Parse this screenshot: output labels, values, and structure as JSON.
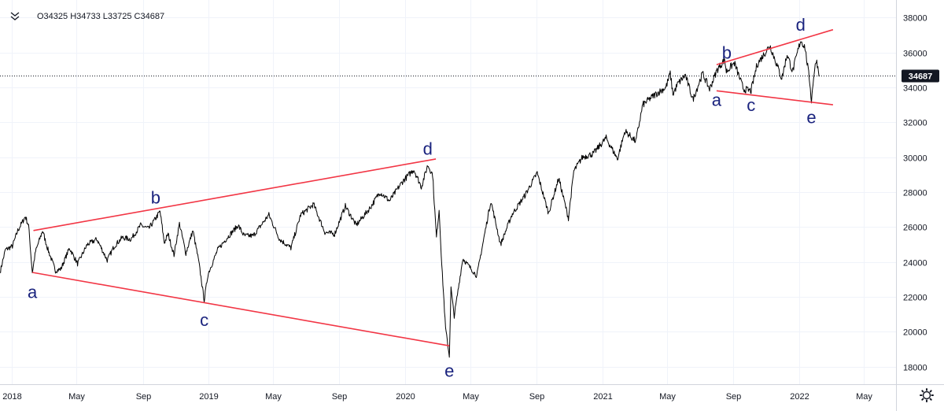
{
  "legend": {
    "collapse_icon": "double-chevron-icon",
    "ohlc": "O34325 H34733 L33725 C34687"
  },
  "settings_icon": "gear-icon",
  "last_price_label": "34687",
  "colors": {
    "price_line": "#000000",
    "trend_line": "#f23645",
    "wave_label": "#1a237e",
    "grid": "#f0f3fa",
    "axis": "#d1d4dc",
    "price_tag": "#131722"
  },
  "chart_data": {
    "type": "line",
    "title": "",
    "xlabel": "",
    "ylabel": "",
    "ylim": [
      17000,
      39000
    ],
    "xlim": [
      "2017-12-10",
      "2022-06-30"
    ],
    "grid": true,
    "y_ticks": [
      18000,
      20000,
      22000,
      24000,
      26000,
      28000,
      30000,
      32000,
      34000,
      36000,
      38000
    ],
    "x_ticks": [
      {
        "date": "2018-01-01",
        "label": "2018"
      },
      {
        "date": "2018-05-01",
        "label": "May"
      },
      {
        "date": "2018-09-01",
        "label": "Sep"
      },
      {
        "date": "2019-01-01",
        "label": "2019"
      },
      {
        "date": "2019-05-01",
        "label": "May"
      },
      {
        "date": "2019-09-01",
        "label": "Sep"
      },
      {
        "date": "2020-01-01",
        "label": "2020"
      },
      {
        "date": "2020-05-01",
        "label": "May"
      },
      {
        "date": "2020-09-01",
        "label": "Sep"
      },
      {
        "date": "2021-01-01",
        "label": "2021"
      },
      {
        "date": "2021-05-01",
        "label": "May"
      },
      {
        "date": "2021-09-01",
        "label": "Sep"
      },
      {
        "date": "2022-01-01",
        "label": "2022"
      },
      {
        "date": "2022-05-01",
        "label": "May"
      }
    ],
    "last_price": 34687,
    "series": [
      {
        "values": [
          [
            "2017-12-10",
            23400
          ],
          [
            "2017-12-20",
            24700
          ],
          [
            "2018-01-02",
            24900
          ],
          [
            "2018-01-12",
            25800
          ],
          [
            "2018-01-26",
            26600
          ],
          [
            "2018-02-01",
            26100
          ],
          [
            "2018-02-08",
            23400
          ],
          [
            "2018-02-14",
            24600
          ],
          [
            "2018-02-27",
            25800
          ],
          [
            "2018-03-08",
            24800
          ],
          [
            "2018-03-23",
            23500
          ],
          [
            "2018-04-02",
            23600
          ],
          [
            "2018-04-18",
            24800
          ],
          [
            "2018-05-03",
            23900
          ],
          [
            "2018-05-21",
            25000
          ],
          [
            "2018-06-08",
            25300
          ],
          [
            "2018-06-27",
            24100
          ],
          [
            "2018-07-10",
            24900
          ],
          [
            "2018-07-25",
            25400
          ],
          [
            "2018-08-10",
            25300
          ],
          [
            "2018-08-28",
            26100
          ],
          [
            "2018-09-12",
            25900
          ],
          [
            "2018-09-25",
            26500
          ],
          [
            "2018-10-03",
            26900
          ],
          [
            "2018-10-11",
            25100
          ],
          [
            "2018-10-18",
            25600
          ],
          [
            "2018-10-29",
            24400
          ],
          [
            "2018-11-08",
            26200
          ],
          [
            "2018-11-20",
            24500
          ],
          [
            "2018-12-03",
            25800
          ],
          [
            "2018-12-14",
            24000
          ],
          [
            "2018-12-24",
            21800
          ],
          [
            "2018-12-31",
            23300
          ],
          [
            "2019-01-18",
            24700
          ],
          [
            "2019-02-05",
            25400
          ],
          [
            "2019-02-25",
            26100
          ],
          [
            "2019-03-08",
            25500
          ],
          [
            "2019-03-25",
            25500
          ],
          [
            "2019-04-23",
            26700
          ],
          [
            "2019-05-13",
            25300
          ],
          [
            "2019-06-03",
            24800
          ],
          [
            "2019-06-21",
            26700
          ],
          [
            "2019-07-15",
            27300
          ],
          [
            "2019-08-05",
            25700
          ],
          [
            "2019-08-23",
            25600
          ],
          [
            "2019-09-12",
            27200
          ],
          [
            "2019-10-02",
            26100
          ],
          [
            "2019-10-28",
            27100
          ],
          [
            "2019-11-15",
            28000
          ],
          [
            "2019-12-03",
            27500
          ],
          [
            "2019-12-27",
            28600
          ],
          [
            "2020-01-17",
            29300
          ],
          [
            "2020-01-31",
            28300
          ],
          [
            "2020-02-12",
            29550
          ],
          [
            "2020-02-21",
            29000
          ],
          [
            "2020-02-28",
            25400
          ],
          [
            "2020-03-04",
            27000
          ],
          [
            "2020-03-09",
            23800
          ],
          [
            "2020-03-16",
            20200
          ],
          [
            "2020-03-23",
            18600
          ],
          [
            "2020-03-26",
            22500
          ],
          [
            "2020-04-01",
            20900
          ],
          [
            "2020-04-17",
            24200
          ],
          [
            "2020-05-13",
            23200
          ],
          [
            "2020-06-08",
            27500
          ],
          [
            "2020-06-26",
            25000
          ],
          [
            "2020-07-17",
            26700
          ],
          [
            "2020-08-10",
            27800
          ],
          [
            "2020-09-02",
            29100
          ],
          [
            "2020-09-23",
            26800
          ],
          [
            "2020-10-12",
            28800
          ],
          [
            "2020-10-30",
            26500
          ],
          [
            "2020-11-09",
            29200
          ],
          [
            "2020-11-25",
            30000
          ],
          [
            "2020-12-15",
            30200
          ],
          [
            "2021-01-08",
            31100
          ],
          [
            "2021-01-29",
            29900
          ],
          [
            "2021-02-12",
            31500
          ],
          [
            "2021-03-04",
            30900
          ],
          [
            "2021-03-17",
            33000
          ],
          [
            "2021-04-05",
            33500
          ],
          [
            "2021-04-29",
            34000
          ],
          [
            "2021-05-07",
            34800
          ],
          [
            "2021-05-12",
            33600
          ],
          [
            "2021-05-21",
            34200
          ],
          [
            "2021-06-04",
            34700
          ],
          [
            "2021-06-18",
            33300
          ],
          [
            "2021-07-06",
            34800
          ],
          [
            "2021-07-19",
            33900
          ],
          [
            "2021-08-02",
            35000
          ],
          [
            "2021-08-16",
            35600
          ],
          [
            "2021-08-19",
            34900
          ],
          [
            "2021-09-03",
            35400
          ],
          [
            "2021-09-20",
            33900
          ],
          [
            "2021-10-04",
            33800
          ],
          [
            "2021-10-15",
            35300
          ],
          [
            "2021-11-08",
            36400
          ],
          [
            "2021-11-30",
            34500
          ],
          [
            "2021-12-10",
            35900
          ],
          [
            "2021-12-20",
            34900
          ],
          [
            "2022-01-04",
            36700
          ],
          [
            "2022-01-12",
            36300
          ],
          [
            "2022-01-21",
            34300
          ],
          [
            "2022-01-24",
            33200
          ],
          [
            "2022-01-28",
            34600
          ],
          [
            "2022-02-02",
            35600
          ],
          [
            "2022-02-08",
            34687
          ]
        ]
      }
    ],
    "trend_lines": [
      {
        "from": [
          "2018-02-10",
          25800
        ],
        "to": [
          "2020-02-27",
          29900
        ]
      },
      {
        "from": [
          "2018-02-08",
          23400
        ],
        "to": [
          "2020-03-23",
          19200
        ]
      },
      {
        "from": [
          "2021-08-01",
          35300
        ],
        "to": [
          "2022-03-05",
          37300
        ]
      },
      {
        "from": [
          "2021-08-01",
          33800
        ],
        "to": [
          "2022-03-05",
          33000
        ]
      }
    ],
    "annotations": [
      {
        "text": "a",
        "date": "2018-02-08",
        "value": 22200
      },
      {
        "text": "b",
        "date": "2018-09-25",
        "value": 27600
      },
      {
        "text": "c",
        "date": "2018-12-24",
        "value": 20600
      },
      {
        "text": "d",
        "date": "2020-02-12",
        "value": 30400
      },
      {
        "text": "e",
        "date": "2020-03-23",
        "value": 17700
      },
      {
        "text": "a",
        "date": "2021-08-01",
        "value": 33200
      },
      {
        "text": "b",
        "date": "2021-08-20",
        "value": 35900
      },
      {
        "text": "c",
        "date": "2021-10-04",
        "value": 32900
      },
      {
        "text": "d",
        "date": "2022-01-04",
        "value": 37500
      },
      {
        "text": "e",
        "date": "2022-01-24",
        "value": 32200
      }
    ]
  }
}
